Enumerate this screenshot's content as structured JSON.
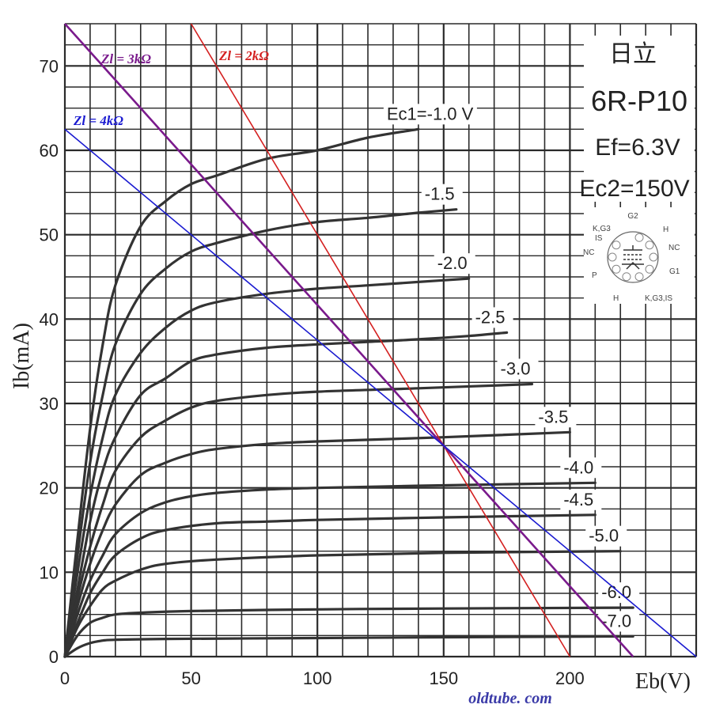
{
  "chart_data": {
    "type": "line",
    "xlabel": "Eb(V)",
    "ylabel": "Ib(mA)",
    "xlim": [
      0,
      250
    ],
    "ylim": [
      0,
      75
    ],
    "x_ticks": [
      "0",
      "50",
      "100",
      "150",
      "200"
    ],
    "y_ticks": [
      "0",
      "10",
      "20",
      "30",
      "40",
      "50",
      "60",
      "70"
    ],
    "grid": true,
    "series": [
      {
        "name": "Ec1=-1.0V",
        "label": "Ec1=-1.0 V",
        "x": [
          0,
          5,
          10,
          15,
          20,
          30,
          40,
          50,
          60,
          80,
          100,
          120,
          140
        ],
        "y": [
          0,
          14,
          27,
          37,
          44,
          51,
          54,
          56,
          57,
          59,
          60,
          61.5,
          62.5
        ]
      },
      {
        "name": "-1.5",
        "label": "-1.5",
        "x": [
          0,
          5,
          10,
          15,
          20,
          30,
          40,
          50,
          60,
          80,
          100,
          120,
          140,
          155
        ],
        "y": [
          0,
          12,
          23,
          31,
          37,
          43,
          46,
          48,
          49,
          50.5,
          51.5,
          52,
          52.6,
          53
        ]
      },
      {
        "name": "-2.0",
        "label": "-2.0",
        "x": [
          0,
          5,
          10,
          15,
          20,
          30,
          40,
          50,
          60,
          80,
          100,
          120,
          140,
          160
        ],
        "y": [
          0,
          10,
          19,
          26,
          31,
          36,
          39,
          41,
          42,
          43,
          43.6,
          44,
          44.4,
          44.8
        ]
      },
      {
        "name": "-2.5",
        "label": "-2.5",
        "x": [
          0,
          5,
          10,
          15,
          20,
          30,
          40,
          50,
          60,
          80,
          100,
          120,
          140,
          160,
          175
        ],
        "y": [
          0,
          8,
          16,
          22,
          26,
          31,
          33,
          35,
          35.8,
          36.6,
          37,
          37.3,
          37.6,
          38,
          38.4
        ]
      },
      {
        "name": "-3.0",
        "label": "-3.0",
        "x": [
          0,
          5,
          10,
          15,
          20,
          30,
          40,
          50,
          60,
          80,
          100,
          140,
          185
        ],
        "y": [
          0,
          7,
          13,
          18,
          22,
          26,
          28,
          29.5,
          30.3,
          31,
          31.4,
          31.8,
          32.3
        ]
      },
      {
        "name": "-3.5",
        "label": "-3.5",
        "x": [
          0,
          5,
          10,
          15,
          20,
          30,
          40,
          50,
          60,
          80,
          100,
          150,
          200
        ],
        "y": [
          0,
          6,
          11,
          15,
          18,
          21.5,
          23,
          24,
          24.6,
          25.2,
          25.5,
          26,
          26.6
        ]
      },
      {
        "name": "-4.0",
        "label": "-4.0",
        "x": [
          0,
          5,
          10,
          15,
          20,
          30,
          40,
          50,
          60,
          80,
          100,
          150,
          210
        ],
        "y": [
          0,
          5,
          9,
          12,
          14.5,
          17,
          18.3,
          19,
          19.4,
          19.8,
          20,
          20.3,
          20.6
        ]
      },
      {
        "name": "-4.5",
        "label": "-4.5",
        "x": [
          0,
          5,
          10,
          15,
          20,
          30,
          40,
          60,
          80,
          100,
          150,
          210
        ],
        "y": [
          0,
          4,
          7.5,
          10,
          12,
          14,
          15,
          15.8,
          16,
          16.2,
          16.5,
          16.8
        ]
      },
      {
        "name": "-5.0",
        "label": "-5.0",
        "x": [
          0,
          5,
          10,
          15,
          20,
          30,
          40,
          60,
          100,
          150,
          220
        ],
        "y": [
          0,
          3.5,
          6,
          8,
          9,
          10.3,
          11,
          11.5,
          12,
          12.3,
          12.5
        ]
      },
      {
        "name": "-6.0",
        "label": "-6.0",
        "x": [
          0,
          5,
          10,
          15,
          20,
          30,
          50,
          100,
          150,
          225
        ],
        "y": [
          0,
          2.5,
          4,
          4.6,
          5,
          5.2,
          5.4,
          5.6,
          5.7,
          5.8
        ]
      },
      {
        "name": "-7.0",
        "label": "-7.0",
        "x": [
          0,
          5,
          10,
          15,
          20,
          40,
          100,
          150,
          225
        ],
        "y": [
          0,
          1,
          1.6,
          1.9,
          2,
          2.1,
          2.2,
          2.3,
          2.4
        ]
      }
    ],
    "load_lines": [
      {
        "label": "Zl = 2kΩ",
        "color": "#d42020",
        "x": [
          50,
          200
        ],
        "y": [
          75,
          0
        ]
      },
      {
        "label": "Zl = 3kΩ",
        "color": "#7a1a8c",
        "x": [
          0,
          225
        ],
        "y": [
          75,
          0
        ]
      },
      {
        "label": "Zl = 4kΩ",
        "color": "#1a1ad0",
        "x": [
          0,
          250
        ],
        "y": [
          62.5,
          0
        ]
      }
    ]
  },
  "tube_info": {
    "maker": "日立",
    "model": "6R-P10",
    "ef": "Ef=6.3V",
    "ec2": "Ec2=150V"
  },
  "pinout": {
    "pins": [
      "G2",
      "H",
      "NC",
      "G1",
      "K,G3,IS",
      "H",
      "P",
      "NC",
      "K,G3",
      "IS"
    ]
  },
  "watermark": "oldtube. com"
}
